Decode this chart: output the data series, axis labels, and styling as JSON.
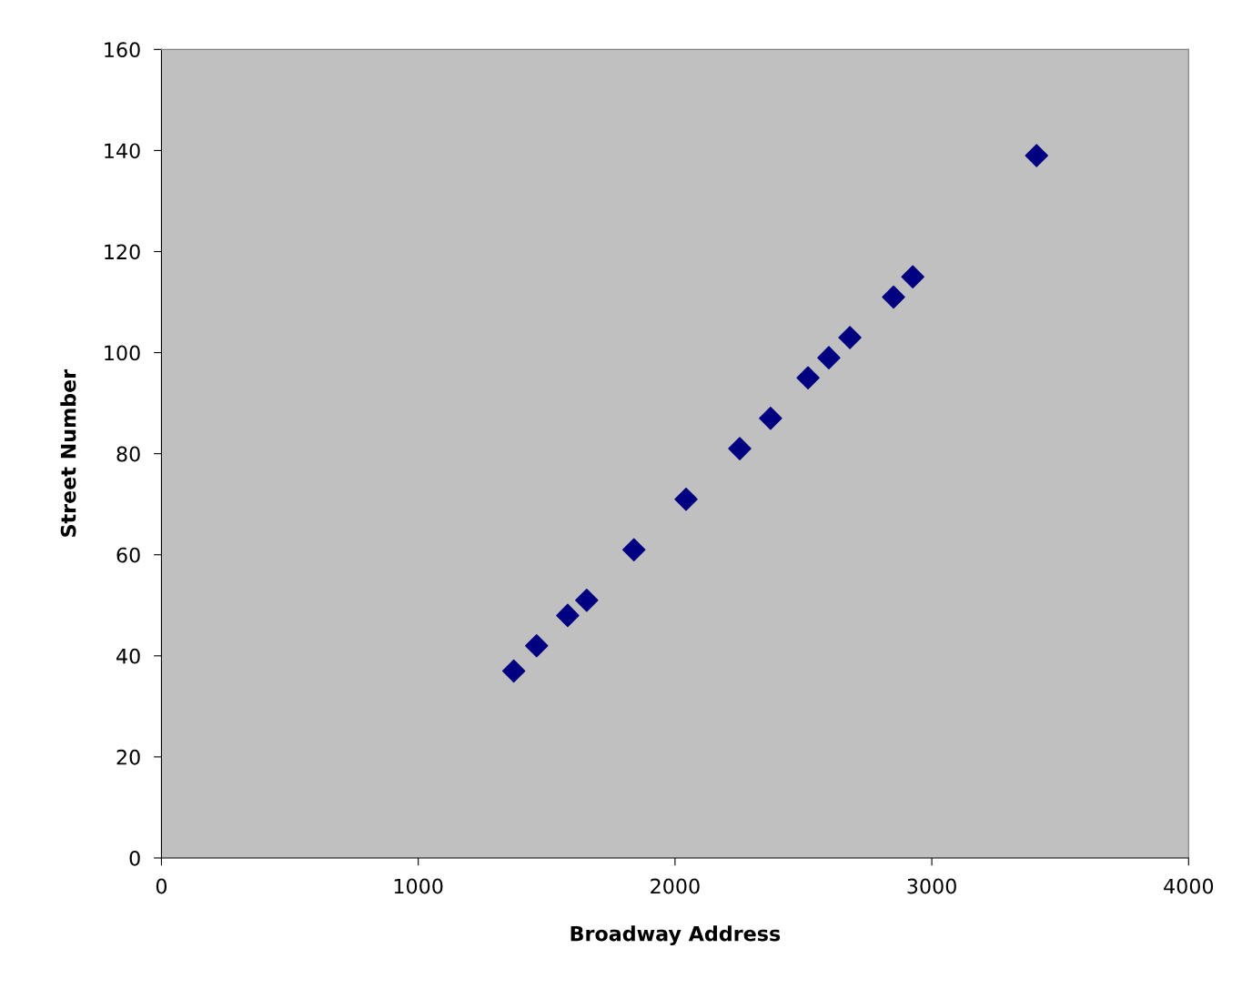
{
  "chart_data": {
    "type": "scatter",
    "xlabel": "Broadway Address",
    "ylabel": "Street Number",
    "x": [
      1372,
      1461,
      1582,
      1656,
      1840,
      2043,
      2252,
      2372,
      2518,
      2599,
      2681,
      2851,
      2926,
      3408
    ],
    "series": [
      {
        "color": "#000080",
        "values": [
          37,
          42,
          48,
          51,
          61,
          71,
          81,
          87,
          95,
          99,
          103,
          111,
          115,
          139
        ]
      }
    ],
    "xlim": [
      0,
      4000
    ],
    "xticks": [
      0,
      1000,
      2000,
      3000,
      4000
    ],
    "ylim": [
      0,
      160
    ],
    "yticks": [
      0,
      20,
      40,
      60,
      80,
      100,
      120,
      140,
      160
    ],
    "marker": "diamond",
    "grid": false
  }
}
